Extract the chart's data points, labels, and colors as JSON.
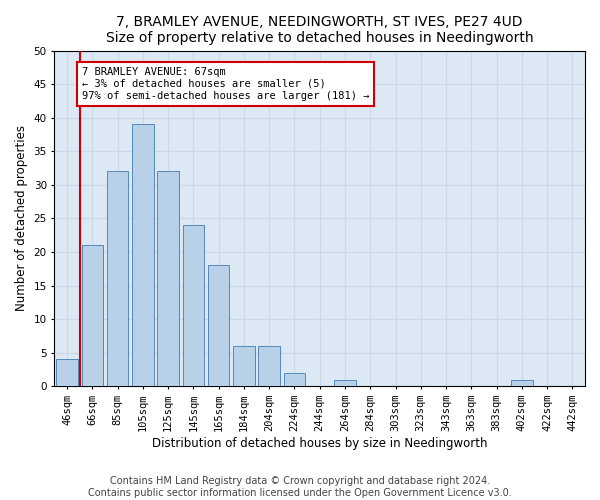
{
  "title": "7, BRAMLEY AVENUE, NEEDINGWORTH, ST IVES, PE27 4UD",
  "subtitle": "Size of property relative to detached houses in Needingworth",
  "xlabel": "Distribution of detached houses by size in Needingworth",
  "ylabel": "Number of detached properties",
  "categories": [
    "46sqm",
    "66sqm",
    "85sqm",
    "105sqm",
    "125sqm",
    "145sqm",
    "165sqm",
    "184sqm",
    "204sqm",
    "224sqm",
    "244sqm",
    "264sqm",
    "284sqm",
    "303sqm",
    "323sqm",
    "343sqm",
    "363sqm",
    "383sqm",
    "402sqm",
    "422sqm",
    "442sqm"
  ],
  "values": [
    4,
    21,
    32,
    39,
    32,
    24,
    18,
    6,
    6,
    2,
    0,
    1,
    0,
    0,
    0,
    0,
    0,
    0,
    1,
    0,
    0
  ],
  "bar_color": "#b8d0e8",
  "bar_edge_color": "#5588bb",
  "highlight_bar_index": 1,
  "highlight_line_color": "#cc0000",
  "annotation_text": "7 BRAMLEY AVENUE: 67sqm\n← 3% of detached houses are smaller (5)\n97% of semi-detached houses are larger (181) →",
  "annotation_box_color": "#ffffff",
  "annotation_box_edge": "#cc0000",
  "ylim": [
    0,
    50
  ],
  "yticks": [
    0,
    5,
    10,
    15,
    20,
    25,
    30,
    35,
    40,
    45,
    50
  ],
  "footer_line1": "Contains HM Land Registry data © Crown copyright and database right 2024.",
  "footer_line2": "Contains public sector information licensed under the Open Government Licence v3.0.",
  "background_color": "#ffffff",
  "grid_color": "#c8d8e8",
  "ax_bg_color": "#dce8f4",
  "title_fontsize": 10,
  "subtitle_fontsize": 9,
  "xlabel_fontsize": 8.5,
  "ylabel_fontsize": 8.5,
  "footer_fontsize": 7,
  "tick_fontsize": 7.5,
  "ann_fontsize": 7.5
}
